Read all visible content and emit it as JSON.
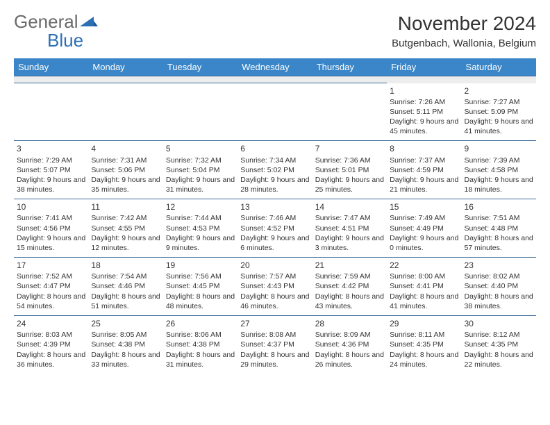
{
  "logo": {
    "text1": "General",
    "text2": "Blue"
  },
  "title": "November 2024",
  "location": "Butgenbach, Wallonia, Belgium",
  "colors": {
    "header_bg": "#3a86c8",
    "row_border": "#3a6a9a",
    "blank_row": "#ededed"
  },
  "day_headers": [
    "Sunday",
    "Monday",
    "Tuesday",
    "Wednesday",
    "Thursday",
    "Friday",
    "Saturday"
  ],
  "weeks": [
    [
      null,
      null,
      null,
      null,
      null,
      {
        "n": "1",
        "sunrise": "7:26 AM",
        "sunset": "5:11 PM",
        "dl": "9 hours and 45 minutes."
      },
      {
        "n": "2",
        "sunrise": "7:27 AM",
        "sunset": "5:09 PM",
        "dl": "9 hours and 41 minutes."
      }
    ],
    [
      {
        "n": "3",
        "sunrise": "7:29 AM",
        "sunset": "5:07 PM",
        "dl": "9 hours and 38 minutes."
      },
      {
        "n": "4",
        "sunrise": "7:31 AM",
        "sunset": "5:06 PM",
        "dl": "9 hours and 35 minutes."
      },
      {
        "n": "5",
        "sunrise": "7:32 AM",
        "sunset": "5:04 PM",
        "dl": "9 hours and 31 minutes."
      },
      {
        "n": "6",
        "sunrise": "7:34 AM",
        "sunset": "5:02 PM",
        "dl": "9 hours and 28 minutes."
      },
      {
        "n": "7",
        "sunrise": "7:36 AM",
        "sunset": "5:01 PM",
        "dl": "9 hours and 25 minutes."
      },
      {
        "n": "8",
        "sunrise": "7:37 AM",
        "sunset": "4:59 PM",
        "dl": "9 hours and 21 minutes."
      },
      {
        "n": "9",
        "sunrise": "7:39 AM",
        "sunset": "4:58 PM",
        "dl": "9 hours and 18 minutes."
      }
    ],
    [
      {
        "n": "10",
        "sunrise": "7:41 AM",
        "sunset": "4:56 PM",
        "dl": "9 hours and 15 minutes."
      },
      {
        "n": "11",
        "sunrise": "7:42 AM",
        "sunset": "4:55 PM",
        "dl": "9 hours and 12 minutes."
      },
      {
        "n": "12",
        "sunrise": "7:44 AM",
        "sunset": "4:53 PM",
        "dl": "9 hours and 9 minutes."
      },
      {
        "n": "13",
        "sunrise": "7:46 AM",
        "sunset": "4:52 PM",
        "dl": "9 hours and 6 minutes."
      },
      {
        "n": "14",
        "sunrise": "7:47 AM",
        "sunset": "4:51 PM",
        "dl": "9 hours and 3 minutes."
      },
      {
        "n": "15",
        "sunrise": "7:49 AM",
        "sunset": "4:49 PM",
        "dl": "9 hours and 0 minutes."
      },
      {
        "n": "16",
        "sunrise": "7:51 AM",
        "sunset": "4:48 PM",
        "dl": "8 hours and 57 minutes."
      }
    ],
    [
      {
        "n": "17",
        "sunrise": "7:52 AM",
        "sunset": "4:47 PM",
        "dl": "8 hours and 54 minutes."
      },
      {
        "n": "18",
        "sunrise": "7:54 AM",
        "sunset": "4:46 PM",
        "dl": "8 hours and 51 minutes."
      },
      {
        "n": "19",
        "sunrise": "7:56 AM",
        "sunset": "4:45 PM",
        "dl": "8 hours and 48 minutes."
      },
      {
        "n": "20",
        "sunrise": "7:57 AM",
        "sunset": "4:43 PM",
        "dl": "8 hours and 46 minutes."
      },
      {
        "n": "21",
        "sunrise": "7:59 AM",
        "sunset": "4:42 PM",
        "dl": "8 hours and 43 minutes."
      },
      {
        "n": "22",
        "sunrise": "8:00 AM",
        "sunset": "4:41 PM",
        "dl": "8 hours and 41 minutes."
      },
      {
        "n": "23",
        "sunrise": "8:02 AM",
        "sunset": "4:40 PM",
        "dl": "8 hours and 38 minutes."
      }
    ],
    [
      {
        "n": "24",
        "sunrise": "8:03 AM",
        "sunset": "4:39 PM",
        "dl": "8 hours and 36 minutes."
      },
      {
        "n": "25",
        "sunrise": "8:05 AM",
        "sunset": "4:38 PM",
        "dl": "8 hours and 33 minutes."
      },
      {
        "n": "26",
        "sunrise": "8:06 AM",
        "sunset": "4:38 PM",
        "dl": "8 hours and 31 minutes."
      },
      {
        "n": "27",
        "sunrise": "8:08 AM",
        "sunset": "4:37 PM",
        "dl": "8 hours and 29 minutes."
      },
      {
        "n": "28",
        "sunrise": "8:09 AM",
        "sunset": "4:36 PM",
        "dl": "8 hours and 26 minutes."
      },
      {
        "n": "29",
        "sunrise": "8:11 AM",
        "sunset": "4:35 PM",
        "dl": "8 hours and 24 minutes."
      },
      {
        "n": "30",
        "sunrise": "8:12 AM",
        "sunset": "4:35 PM",
        "dl": "8 hours and 22 minutes."
      }
    ]
  ],
  "labels": {
    "sunrise": "Sunrise: ",
    "sunset": "Sunset: ",
    "daylight": "Daylight: "
  }
}
